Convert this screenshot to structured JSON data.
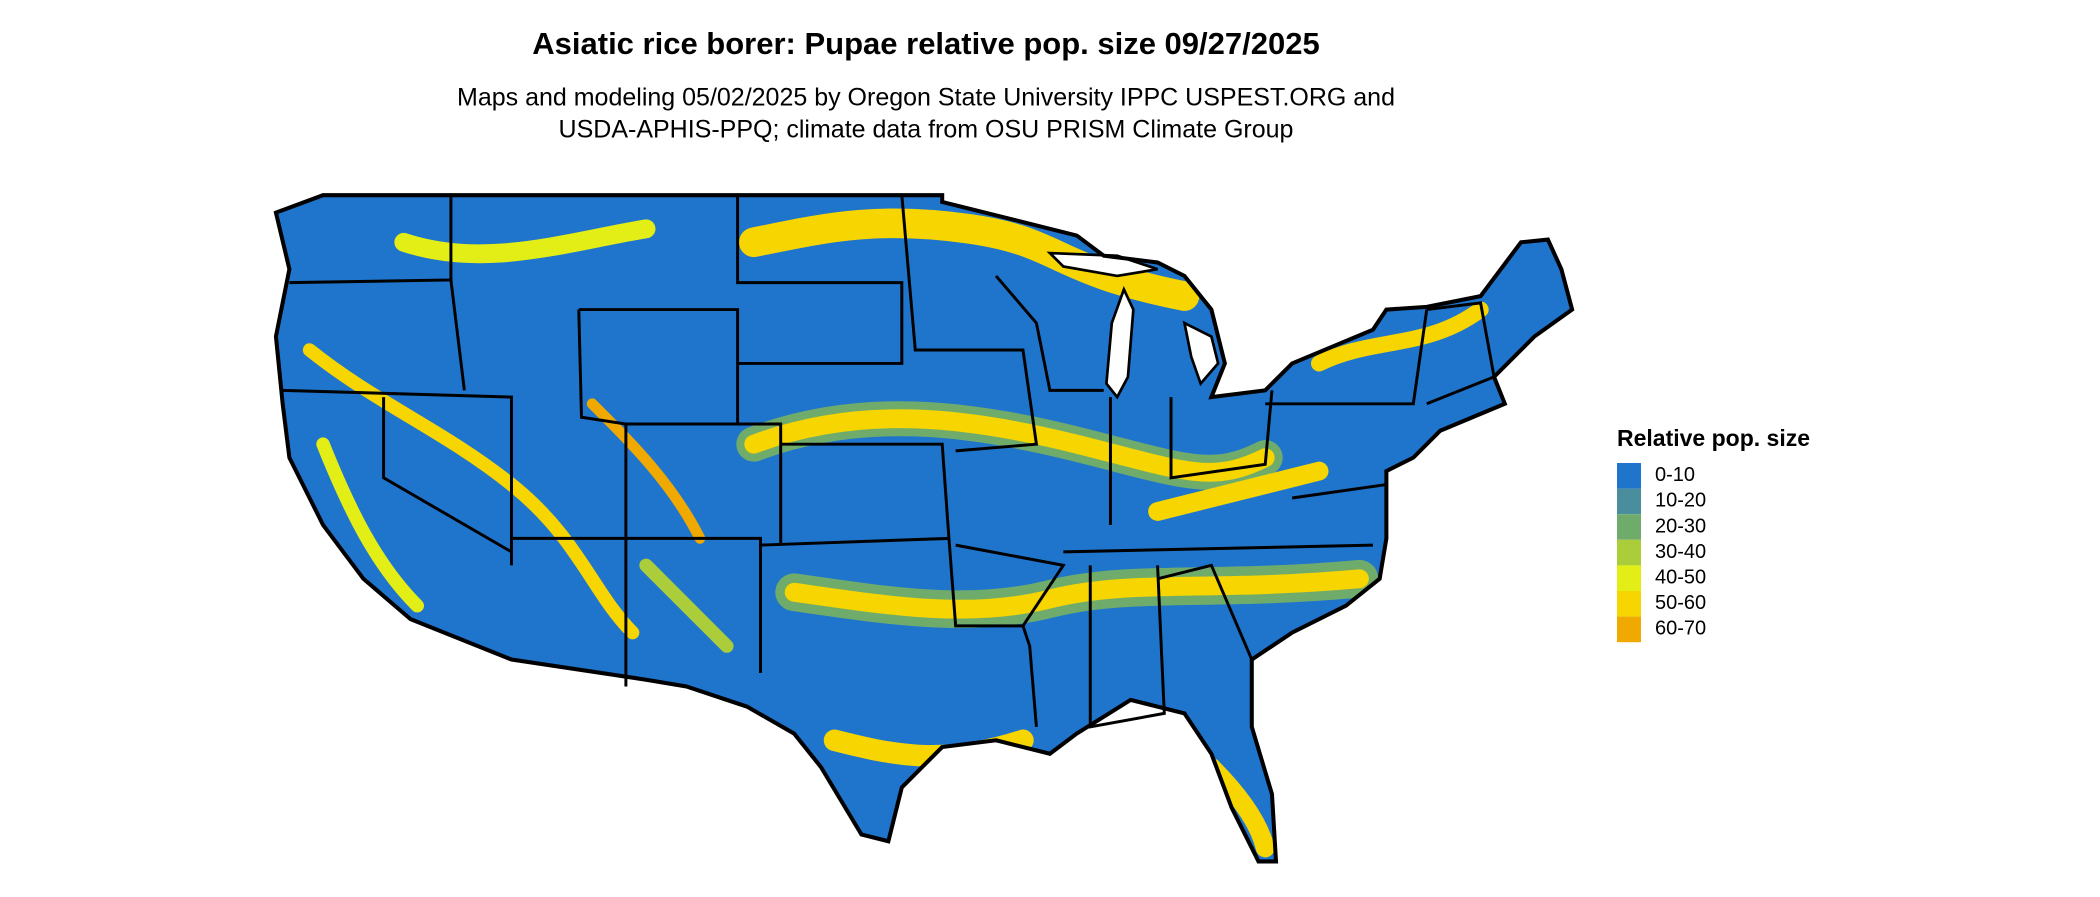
{
  "title": "Asiatic rice borer: Pupae relative pop. size 09/27/2025",
  "subtitle": [
    "Maps and modeling 05/02/2025 by Oregon State University IPPC USPEST.ORG and",
    "USDA-APHIS-PPQ; climate data from OSU PRISM Climate Group"
  ],
  "legend": {
    "title": "Relative pop. size",
    "items": [
      {
        "label": "0-10",
        "color": "#1f74cc"
      },
      {
        "label": "10-20",
        "color": "#4a8e9e"
      },
      {
        "label": "20-30",
        "color": "#6fac6c"
      },
      {
        "label": "30-40",
        "color": "#abcd3a"
      },
      {
        "label": "40-50",
        "color": "#e2ee16"
      },
      {
        "label": "50-60",
        "color": "#f6d500"
      },
      {
        "label": "60-70",
        "color": "#efa900"
      }
    ]
  }
}
